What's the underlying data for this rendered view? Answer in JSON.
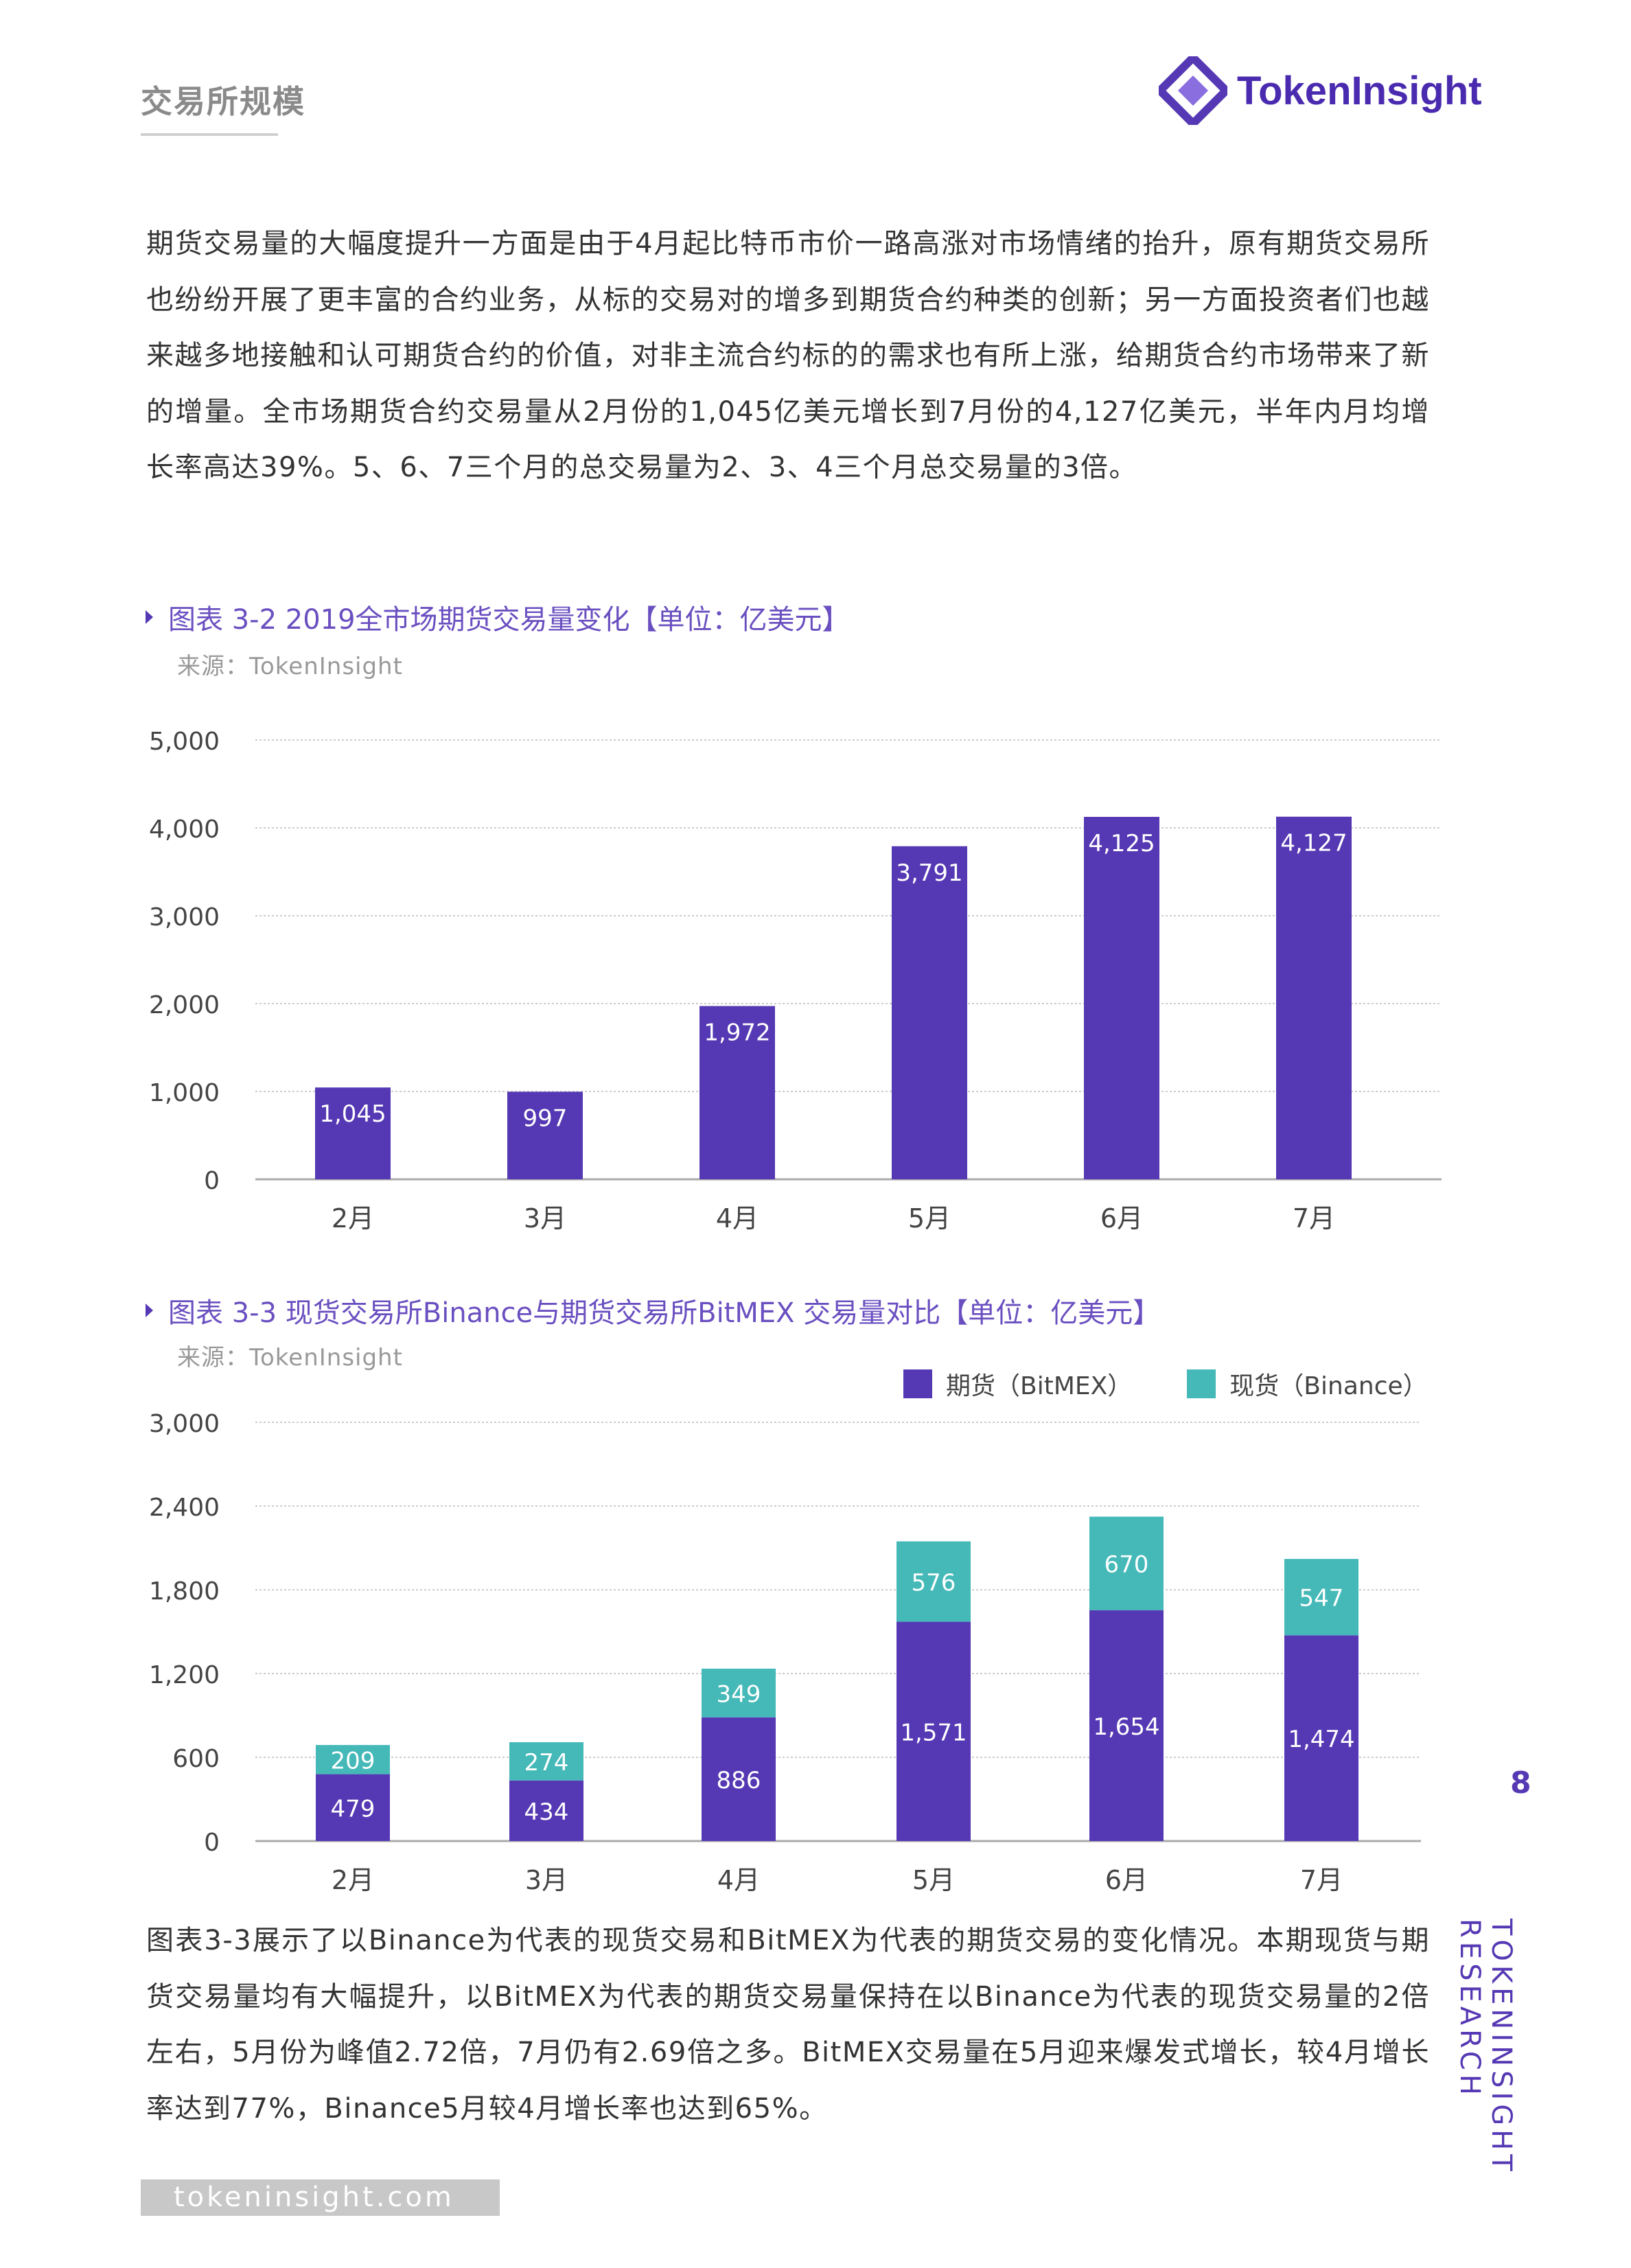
{
  "header": {
    "section": "交易所规模",
    "logo_text": "TokenInsight"
  },
  "paragraph1": "期货交易量的大幅度提升一方面是由于4月起比特币市价一路高涨对市场情绪的抬升，原有期货交易所也纷纷开展了更丰富的合约业务，从标的交易对的增多到期货合约种类的创新；另一方面投资者们也越来越多地接触和认可期货合约的价值，对非主流合约标的的需求也有所上涨，给期货合约市场带来了新的增量。全市场期货合约交易量从2月份的1,045亿美元增长到7月份的4,127亿美元，半年内月均增长率高达39%。5、6、7三个月的总交易量为2、3、4三个月总交易量的3倍。",
  "paragraph2": "图表3-3展示了以Binance为代表的现货交易和BitMEX为代表的期货交易的变化情况。本期现货与期货交易量均有大幅提升，以BitMEX为代表的期货交易量保持在以Binance为代表的现货交易量的2倍左右，5月份为峰值2.72倍，7月仍有2.69倍之多。BitMEX交易量在5月迎来爆发式增长，较4月增长率达到77%，Binance5月较4月增长率也达到65%。",
  "colors": {
    "futures": "#5538b3",
    "spot": "#45b8b8",
    "title": "#6a4fc0"
  },
  "chart_data": [
    {
      "type": "bar",
      "title": "图表 3-2 2019全市场期货交易量变化【单位：亿美元】",
      "source": "来源：TokenInsight",
      "categories": [
        "2月",
        "3月",
        "4月",
        "5月",
        "6月",
        "7月"
      ],
      "values": [
        1045,
        997,
        1972,
        3791,
        4125,
        4127
      ],
      "labels": [
        "1,045",
        "997",
        "1,972",
        "3,791",
        "4,125",
        "4,127"
      ],
      "ylim": [
        0,
        5000
      ],
      "yticks": [
        "0",
        "1,000",
        "2,000",
        "3,000",
        "4,000",
        "5,000"
      ],
      "grid": true
    },
    {
      "type": "bar",
      "stacked": true,
      "title": "图表 3-3 现货交易所Binance与期货交易所BitMEX 交易量对比【单位：亿美元】",
      "source": "来源：TokenInsight",
      "categories": [
        "2月",
        "3月",
        "4月",
        "5月",
        "6月",
        "7月"
      ],
      "series": [
        {
          "name": "期货（BitMEX）",
          "values": [
            479,
            434,
            886,
            1571,
            1654,
            1474
          ],
          "labels": [
            "479",
            "434",
            "886",
            "1,571",
            "1,654",
            "1,474"
          ]
        },
        {
          "name": "现货（Binance）",
          "values": [
            209,
            274,
            349,
            576,
            670,
            547
          ],
          "labels": [
            "209",
            "274",
            "349",
            "576",
            "670",
            "547"
          ]
        }
      ],
      "ylim": [
        0,
        3000
      ],
      "yticks": [
        "0",
        "600",
        "1,200",
        "1,800",
        "2,400",
        "3,000"
      ],
      "grid": true,
      "legend": "top-right"
    }
  ],
  "page": {
    "number": "8",
    "vertical": "TOKENINSIGHT RESEARCH",
    "footer": "tokeninsight.com"
  }
}
